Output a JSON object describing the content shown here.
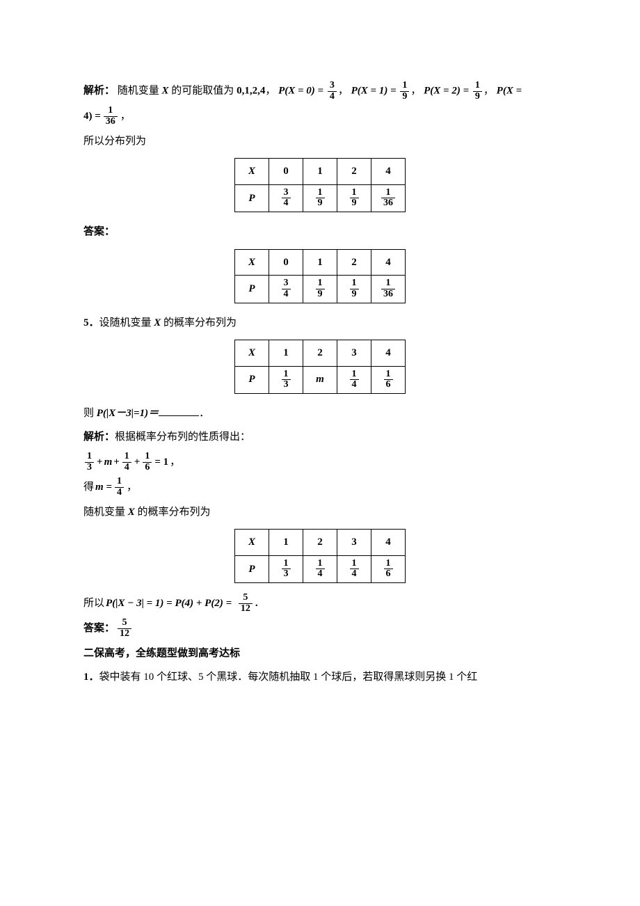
{
  "p1": {
    "jiexi_label": "解析：",
    "jiexi_text_pre": "随机变量 ",
    "jiexi_text_mid": " 的可能取值为 ",
    "values_list": "0,1,2,4",
    "sep": "，",
    "p0_lhs": "P(X = 0) =",
    "f1n": "3",
    "f1d": "4",
    "p1_lhs": "P(X = 1) =",
    "f2n": "1",
    "f2d": "9",
    "p2_lhs": "P(X = 2) =",
    "f3n": "1",
    "f3d": "9",
    "p4_lhs_a": "P(X =",
    "p4_lhs_b": "4) =",
    "f4n": "1",
    "f4d": "36",
    "period": "，",
    "so_text": "所以分布列为",
    "table": {
      "labelX": "X",
      "labelP": "P",
      "xs": [
        "0",
        "1",
        "2",
        "4"
      ],
      "ps": [
        {
          "n": "3",
          "d": "4"
        },
        {
          "n": "1",
          "d": "9"
        },
        {
          "n": "1",
          "d": "9"
        },
        {
          "n": "1",
          "d": "36"
        }
      ]
    },
    "answer_label": "答案："
  },
  "q5": {
    "label": "5．",
    "text_pre": "设随机变量 ",
    "text_post": " 的概率分布列为",
    "table": {
      "labelX": "X",
      "labelP": "P",
      "xs": [
        "1",
        "2",
        "3",
        "4"
      ],
      "ps": [
        {
          "n": "1",
          "d": "3"
        },
        {
          "m": "m"
        },
        {
          "n": "1",
          "d": "4"
        },
        {
          "n": "1",
          "d": "6"
        }
      ]
    },
    "ze": "则 ",
    "prob_expr": "P(|X－3|=1)＝",
    "dot": "．",
    "jiexi_label": "解析：",
    "jiexi_text": "根据概率分布列的性质得出：",
    "eq1_f1n": "1",
    "eq1_f1d": "3",
    "plus": " + ",
    "m": "m",
    "eq1_f2n": "1",
    "eq1_f2d": "4",
    "eq1_f3n": "1",
    "eq1_f3d": "6",
    "eq1_rhs": " = 1",
    "de": "得 ",
    "m_eq": "m = ",
    "m_n": "1",
    "m_d": "4",
    "reprob_text_pre": "随机变量 ",
    "reprob_text_post": " 的概率分布列为",
    "table2": {
      "labelX": "X",
      "labelP": "P",
      "xs": [
        "1",
        "2",
        "3",
        "4"
      ],
      "ps": [
        {
          "n": "1",
          "d": "3"
        },
        {
          "n": "1",
          "d": "4"
        },
        {
          "n": "1",
          "d": "4"
        },
        {
          "n": "1",
          "d": "6"
        }
      ]
    },
    "so2_pre": "所以 ",
    "so2_expr": "P(|X − 3| = 1) = P(4) + P(2) =",
    "so2_n": "5",
    "so2_d": "12",
    "so2_end": ".",
    "answer_label": "答案：",
    "ans_n": "5",
    "ans_d": "12"
  },
  "section2": {
    "heading": "二保高考，全练题型做到高考达标",
    "q1_label": "1．",
    "q1_text": "袋中装有 10 个红球、5 个黑球．每次随机抽取 1 个球后，若取得黑球则另换 1 个红"
  },
  "X": "X"
}
